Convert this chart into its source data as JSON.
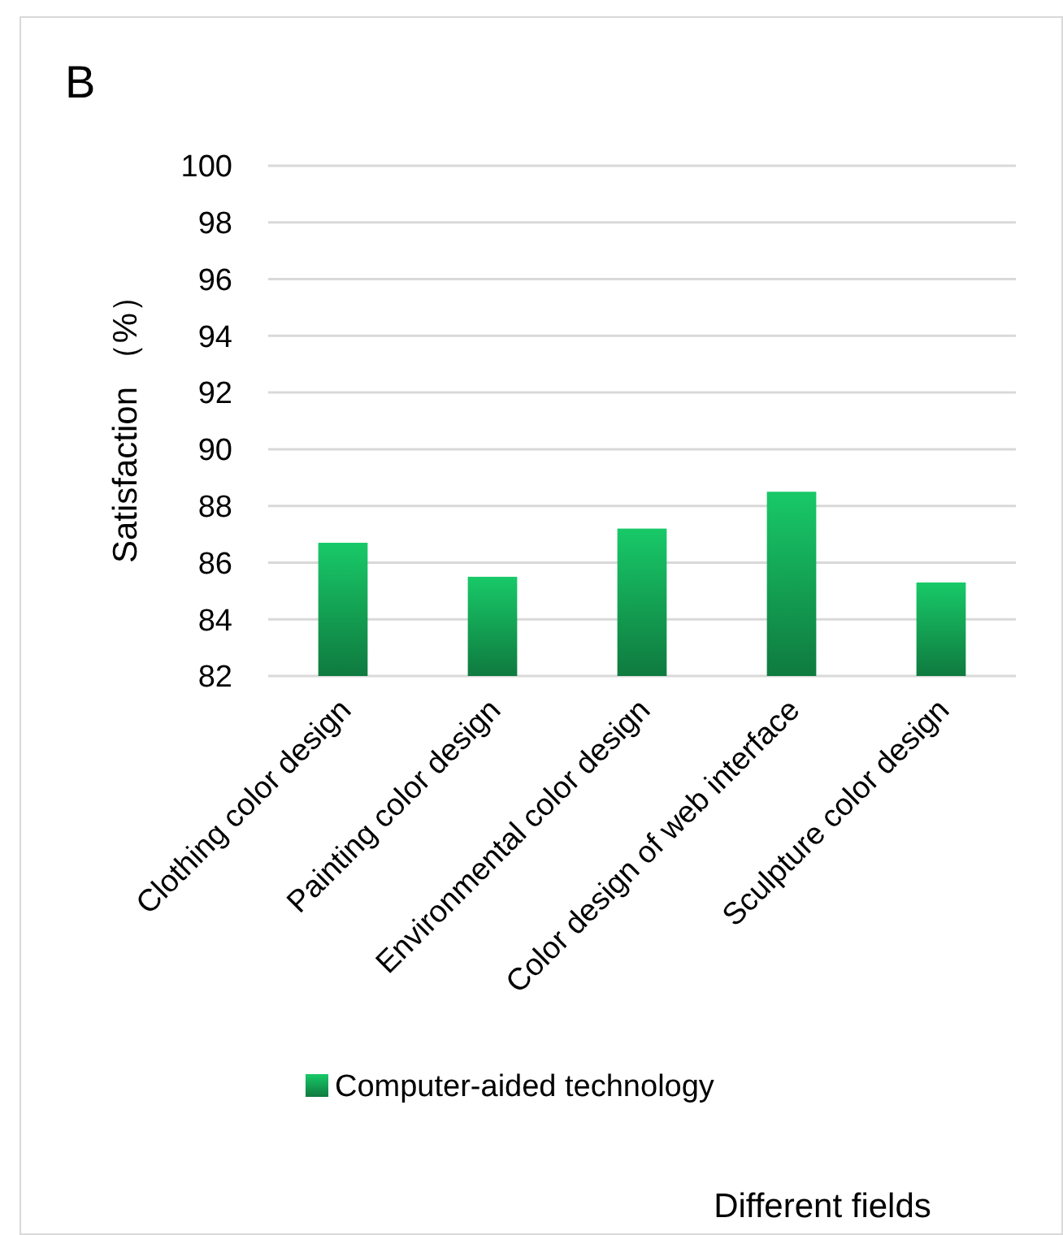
{
  "chart_data": {
    "type": "bar",
    "title": "B",
    "ylabel": "Satisfaction （%）",
    "annotations": [
      "Different fields"
    ],
    "categories": [
      "Clothing color design",
      "Painting color design",
      "Environmental color design",
      "Color design of web interface",
      "Sculpture color design"
    ],
    "series": [
      {
        "name": "Computer-aided technology",
        "color": "#18c968",
        "values": [
          86.7,
          85.5,
          87.2,
          88.5,
          85.3
        ]
      }
    ],
    "ylim": [
      82,
      100
    ],
    "yticks": [
      82,
      84,
      86,
      88,
      90,
      92,
      94,
      96,
      98,
      100
    ],
    "grid": "y",
    "legend": "bottom"
  }
}
